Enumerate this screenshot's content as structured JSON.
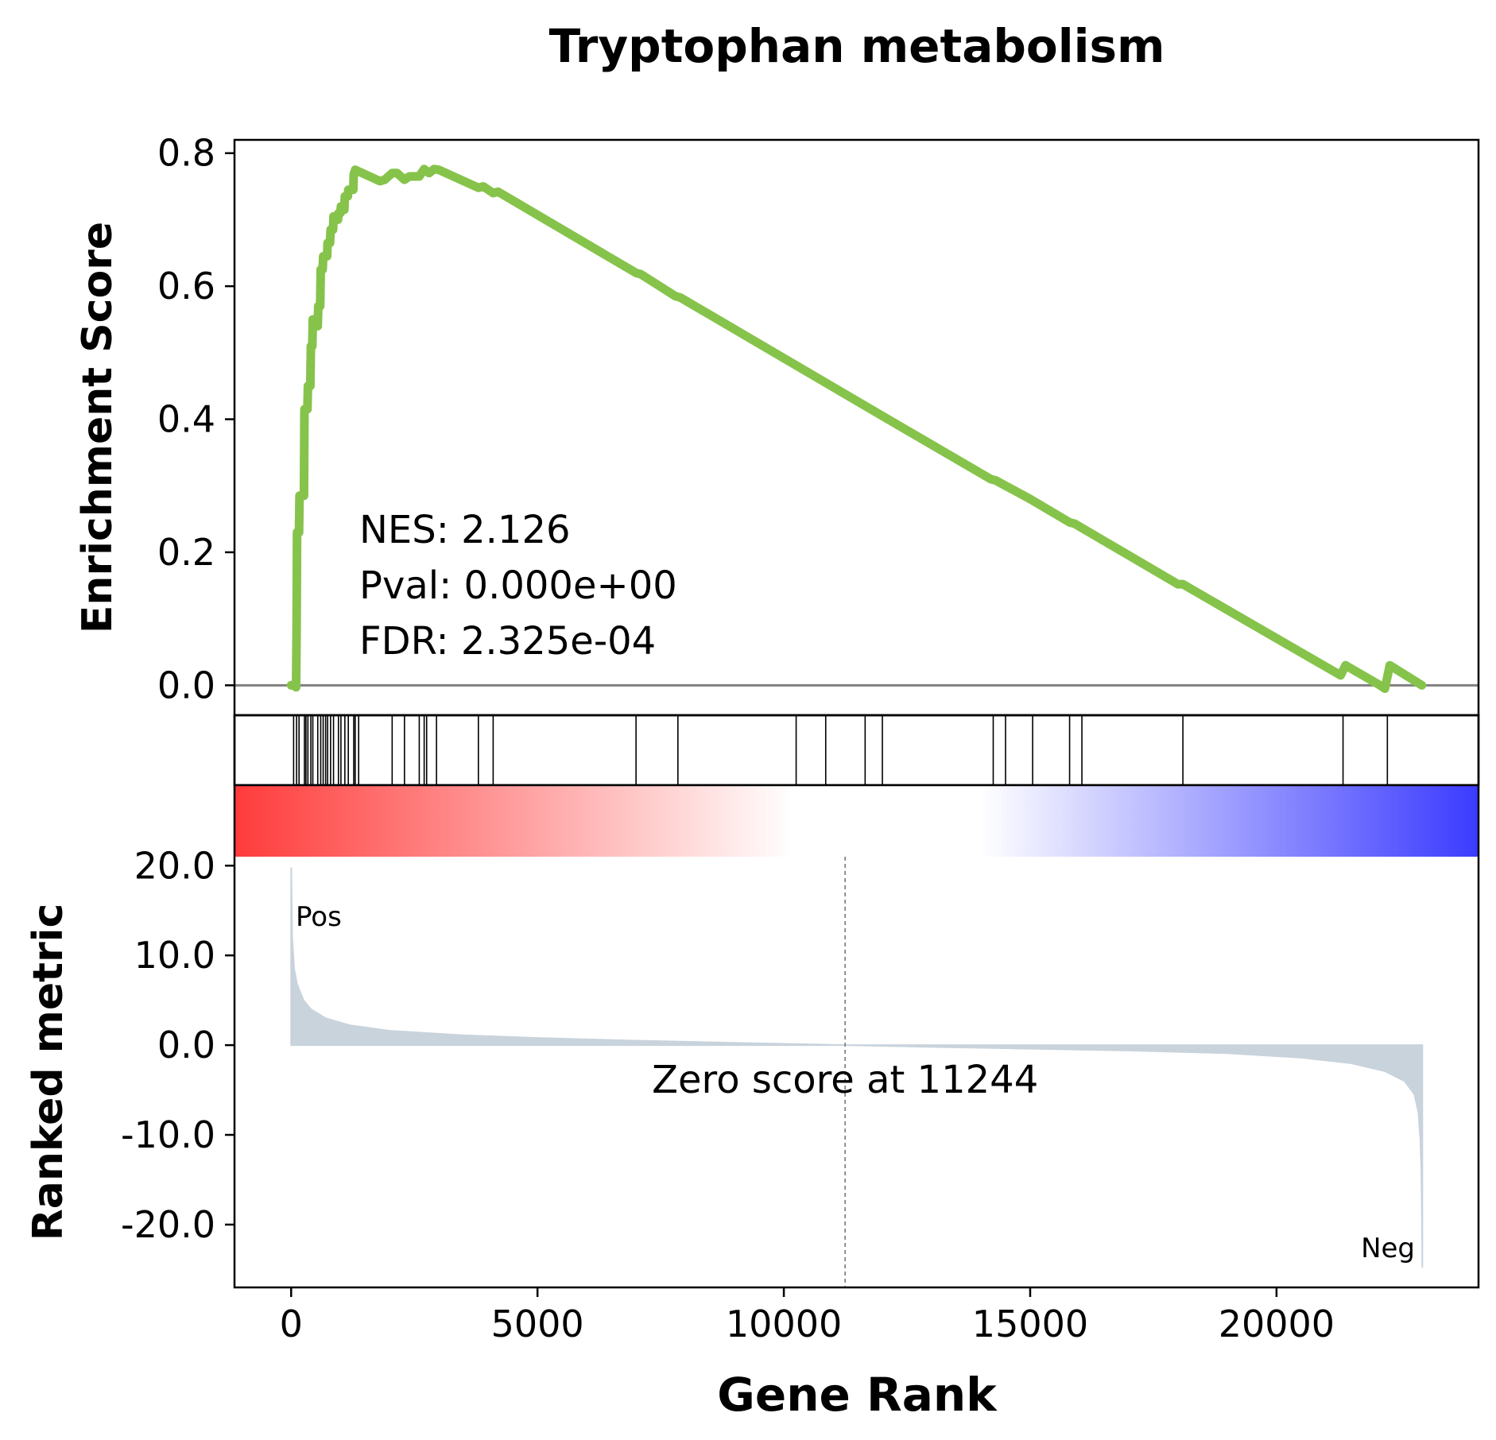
{
  "chart_data": {
    "type": "line",
    "title": "Tryptophan metabolism",
    "xlabel": "Gene Rank",
    "xlim": [
      -1150,
      24100
    ],
    "x_ticks": [
      0,
      5000,
      10000,
      15000,
      20000
    ],
    "enrichment": {
      "ylabel": "Enrichment Score",
      "ylim": [
        -0.045,
        0.82
      ],
      "y_ticks": [
        0.0,
        0.2,
        0.4,
        0.6,
        0.8
      ],
      "y_tick_labels": [
        "0.0",
        "0.2",
        "0.4",
        "0.6",
        "0.8"
      ],
      "line_color": "#86c34b",
      "baseline_color": "#808080",
      "stats": {
        "nes": "NES: 2.126",
        "pval": "Pval: 0.000e+00",
        "fdr": "FDR: 2.325e-04"
      },
      "points": [
        [
          0,
          0.0
        ],
        [
          50,
          0.0
        ],
        [
          100,
          -0.003
        ],
        [
          110,
          0.08
        ],
        [
          120,
          0.23
        ],
        [
          160,
          0.23
        ],
        [
          170,
          0.285
        ],
        [
          260,
          0.285
        ],
        [
          270,
          0.415
        ],
        [
          330,
          0.415
        ],
        [
          340,
          0.45
        ],
        [
          390,
          0.45
        ],
        [
          400,
          0.51
        ],
        [
          430,
          0.51
        ],
        [
          440,
          0.55
        ],
        [
          540,
          0.54
        ],
        [
          550,
          0.57
        ],
        [
          590,
          0.57
        ],
        [
          600,
          0.625
        ],
        [
          640,
          0.625
        ],
        [
          650,
          0.645
        ],
        [
          730,
          0.645
        ],
        [
          740,
          0.665
        ],
        [
          790,
          0.665
        ],
        [
          800,
          0.685
        ],
        [
          850,
          0.685
        ],
        [
          860,
          0.705
        ],
        [
          950,
          0.7
        ],
        [
          960,
          0.71
        ],
        [
          1000,
          0.71
        ],
        [
          1010,
          0.72
        ],
        [
          1080,
          0.715
        ],
        [
          1090,
          0.735
        ],
        [
          1150,
          0.735
        ],
        [
          1160,
          0.745
        ],
        [
          1260,
          0.745
        ],
        [
          1270,
          0.768
        ],
        [
          1300,
          0.775
        ],
        [
          1800,
          0.758
        ],
        [
          1900,
          0.76
        ],
        [
          2050,
          0.77
        ],
        [
          2150,
          0.77
        ],
        [
          2300,
          0.76
        ],
        [
          2400,
          0.765
        ],
        [
          2600,
          0.765
        ],
        [
          2700,
          0.776
        ],
        [
          2800,
          0.77
        ],
        [
          2900,
          0.776
        ],
        [
          3000,
          0.775
        ],
        [
          3800,
          0.748
        ],
        [
          3900,
          0.75
        ],
        [
          4100,
          0.74
        ],
        [
          4200,
          0.742
        ],
        [
          7000,
          0.62
        ],
        [
          7100,
          0.618
        ],
        [
          7800,
          0.585
        ],
        [
          7900,
          0.583
        ],
        [
          12000,
          0.405
        ],
        [
          14200,
          0.31
        ],
        [
          14300,
          0.308
        ],
        [
          15000,
          0.28
        ],
        [
          15800,
          0.245
        ],
        [
          15900,
          0.243
        ],
        [
          18000,
          0.152
        ],
        [
          18100,
          0.152
        ],
        [
          21300,
          0.015
        ],
        [
          21400,
          0.03
        ],
        [
          22100,
          0.0
        ],
        [
          22200,
          -0.005
        ],
        [
          22300,
          0.03
        ],
        [
          22950,
          0.0
        ]
      ]
    },
    "hits": {
      "positions": [
        50,
        110,
        160,
        270,
        300,
        340,
        400,
        440,
        540,
        600,
        650,
        700,
        740,
        800,
        860,
        960,
        1010,
        1090,
        1160,
        1270,
        1300,
        1370,
        2050,
        2300,
        2600,
        2700,
        2750,
        2950,
        3800,
        4100,
        7000,
        7850,
        10250,
        10850,
        11650,
        12000,
        14250,
        14500,
        15050,
        15800,
        16050,
        18100,
        21350,
        22250
      ]
    },
    "gradient": {
      "start_color": "#ff3b3b",
      "end_color": "#3b3bff",
      "mid_color": "#ffffff"
    },
    "ranked_metric": {
      "ylabel": "Ranked metric",
      "ylim": [
        -27,
        21
      ],
      "y_ticks": [
        20,
        10,
        0,
        -10,
        -20
      ],
      "y_tick_labels": [
        "20.0",
        "10.0",
        "0.0",
        "-10.0",
        "-20.0"
      ],
      "fill_color": "#c9d3dc",
      "pos_label": "Pos",
      "neg_label": "Neg",
      "pos_color": "#ff0000",
      "neg_color": "#0000ff",
      "zero_score_text": "Zero score at 11244",
      "zero_cross_rank": 11244,
      "points": [
        [
          0,
          19.8
        ],
        [
          20,
          12.0
        ],
        [
          60,
          8.5
        ],
        [
          120,
          6.8
        ],
        [
          250,
          5.0
        ],
        [
          400,
          4.0
        ],
        [
          700,
          3.0
        ],
        [
          1200,
          2.2
        ],
        [
          2000,
          1.6
        ],
        [
          3500,
          1.1
        ],
        [
          5000,
          0.8
        ],
        [
          7000,
          0.5
        ],
        [
          9000,
          0.25
        ],
        [
          11244,
          0.0
        ],
        [
          13000,
          -0.2
        ],
        [
          15000,
          -0.4
        ],
        [
          17000,
          -0.6
        ],
        [
          19000,
          -0.9
        ],
        [
          20500,
          -1.4
        ],
        [
          21500,
          -2.0
        ],
        [
          22200,
          -2.9
        ],
        [
          22600,
          -4.0
        ],
        [
          22800,
          -5.5
        ],
        [
          22880,
          -7.5
        ],
        [
          22920,
          -10.5
        ],
        [
          22940,
          -14.0
        ],
        [
          22955,
          -20.0
        ],
        [
          22960,
          -24.8
        ]
      ]
    }
  }
}
